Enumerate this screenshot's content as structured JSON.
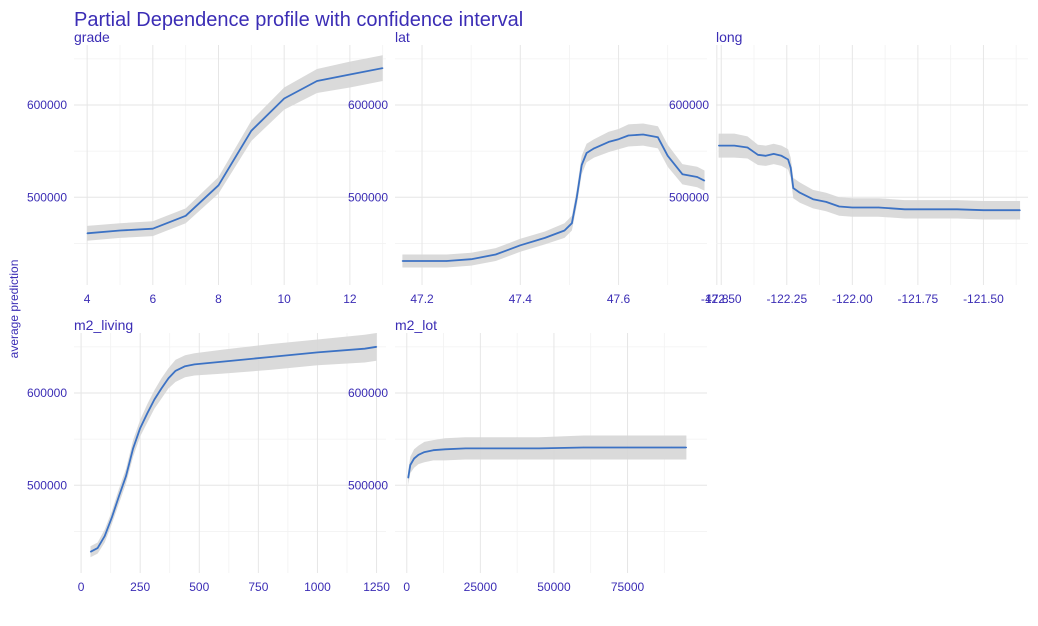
{
  "chart_data": {
    "type": "line",
    "title": "Partial Dependence profile with confidence interval",
    "ylabel": "average prediction",
    "colors": {
      "line": "#3c72c4",
      "band": "#d6d6d6",
      "text": "#3b2db5",
      "grid": "#e6e6e6"
    },
    "grid": true,
    "panels": [
      {
        "name": "grade",
        "xlim": [
          3.6,
          13.1
        ],
        "ylim": [
          405000,
          665000
        ],
        "xticks": [
          4,
          6,
          8,
          10,
          12
        ],
        "xtick_labels": [
          "4",
          "6",
          "8",
          "10",
          "12"
        ],
        "yticks": [
          500000,
          600000
        ],
        "ytick_labels": [
          "500000",
          "600000"
        ],
        "x": [
          4,
          5,
          6,
          7,
          8,
          9,
          10,
          11,
          12,
          13
        ],
        "y": [
          461000,
          464000,
          466000,
          480000,
          513000,
          572000,
          607000,
          626000,
          633000,
          640000
        ],
        "ci": [
          8000,
          8000,
          8000,
          8000,
          9000,
          11000,
          12000,
          13000,
          14000,
          14000
        ]
      },
      {
        "name": "lat",
        "xlim": [
          47.145,
          47.78
        ],
        "ylim": [
          405000,
          665000
        ],
        "xticks": [
          47.2,
          47.4,
          47.6,
          47.8
        ],
        "xtick_labels": [
          "47.2",
          "47.4",
          "47.6",
          "47.8"
        ],
        "yticks": [
          500000,
          600000
        ],
        "ytick_labels": [
          "500000",
          "600000"
        ],
        "x": [
          47.16,
          47.2,
          47.25,
          47.3,
          47.35,
          47.4,
          47.45,
          47.49,
          47.505,
          47.515,
          47.525,
          47.535,
          47.55,
          47.58,
          47.6,
          47.62,
          47.65,
          47.68,
          47.7,
          47.73,
          47.76,
          47.775
        ],
        "y": [
          431000,
          431000,
          431000,
          433000,
          438000,
          448000,
          456000,
          464000,
          472000,
          500000,
          535000,
          548000,
          553000,
          560000,
          563000,
          567000,
          568000,
          565000,
          545000,
          525000,
          522000,
          518000
        ],
        "ci": [
          7000,
          7000,
          7000,
          7000,
          7000,
          7000,
          7000,
          8000,
          8000,
          9000,
          10000,
          10000,
          10000,
          11000,
          11000,
          12000,
          12000,
          12000,
          12000,
          11000,
          11000,
          11000
        ]
      },
      {
        "name": "long",
        "xlim": [
          -122.52,
          -121.33
        ],
        "ylim": [
          405000,
          665000
        ],
        "xticks": [
          -122.5,
          -122.25,
          -122.0,
          -121.75,
          -121.5
        ],
        "xtick_labels": [
          "-122.50",
          "-122.25",
          "-122.00",
          "-121.75",
          "-121.50"
        ],
        "yticks": [
          500000,
          600000
        ],
        "ytick_labels": [
          "500000",
          "600000"
        ],
        "x": [
          -122.51,
          -122.45,
          -122.4,
          -122.36,
          -122.33,
          -122.3,
          -122.27,
          -122.245,
          -122.235,
          -122.225,
          -122.2,
          -122.15,
          -122.1,
          -122.05,
          -122.0,
          -121.9,
          -121.8,
          -121.7,
          -121.6,
          -121.5,
          -121.36
        ],
        "y": [
          556000,
          556000,
          554000,
          546000,
          545000,
          547000,
          545000,
          541000,
          532000,
          510000,
          505000,
          498000,
          495000,
          490000,
          489000,
          489000,
          487000,
          487000,
          487000,
          486000,
          486000
        ],
        "ci": [
          13000,
          13000,
          12000,
          11000,
          11000,
          11000,
          11000,
          11000,
          11000,
          11000,
          11000,
          10000,
          10000,
          10000,
          10000,
          10000,
          10000,
          10000,
          10000,
          10000,
          10000
        ]
      },
      {
        "name": "m2_living",
        "xlim": [
          -30,
          1290
        ],
        "ylim": [
          405000,
          665000
        ],
        "xticks": [
          0,
          250,
          500,
          750,
          1000,
          1250
        ],
        "xtick_labels": [
          "0",
          "250",
          "500",
          "750",
          "1000",
          "1250"
        ],
        "yticks": [
          500000,
          600000
        ],
        "ytick_labels": [
          "500000",
          "600000"
        ],
        "x": [
          40,
          70,
          100,
          130,
          160,
          190,
          220,
          250,
          280,
          310,
          340,
          370,
          400,
          440,
          480,
          600,
          800,
          1000,
          1200,
          1250
        ],
        "y": [
          428000,
          432000,
          445000,
          465000,
          488000,
          510000,
          540000,
          562000,
          578000,
          593000,
          605000,
          616000,
          624000,
          629000,
          631000,
          634000,
          639000,
          644000,
          648000,
          650000
        ],
        "ci": [
          6000,
          6000,
          7000,
          7000,
          8000,
          8000,
          9000,
          9000,
          10000,
          10000,
          11000,
          11000,
          12000,
          12000,
          12000,
          13000,
          14000,
          14000,
          15000,
          15000
        ]
      },
      {
        "name": "m2_lot",
        "xlim": [
          -4000,
          102000
        ],
        "ylim": [
          405000,
          665000
        ],
        "xticks": [
          0,
          25000,
          50000,
          75000
        ],
        "xtick_labels": [
          "0",
          "25000",
          "50000",
          "75000"
        ],
        "yticks": [
          500000,
          600000
        ],
        "ytick_labels": [
          "500000",
          "600000"
        ],
        "x": [
          500,
          1200,
          2500,
          4000,
          6000,
          9000,
          13000,
          20000,
          30000,
          45000,
          60000,
          75000,
          90000,
          95000
        ],
        "y": [
          508000,
          522000,
          529000,
          533000,
          536000,
          538000,
          539000,
          540000,
          540000,
          540000,
          541000,
          541000,
          541000,
          541000
        ],
        "ci": [
          8000,
          9000,
          10000,
          10000,
          11000,
          11000,
          12000,
          12000,
          12000,
          12000,
          13000,
          13000,
          13000,
          13000
        ]
      }
    ]
  }
}
